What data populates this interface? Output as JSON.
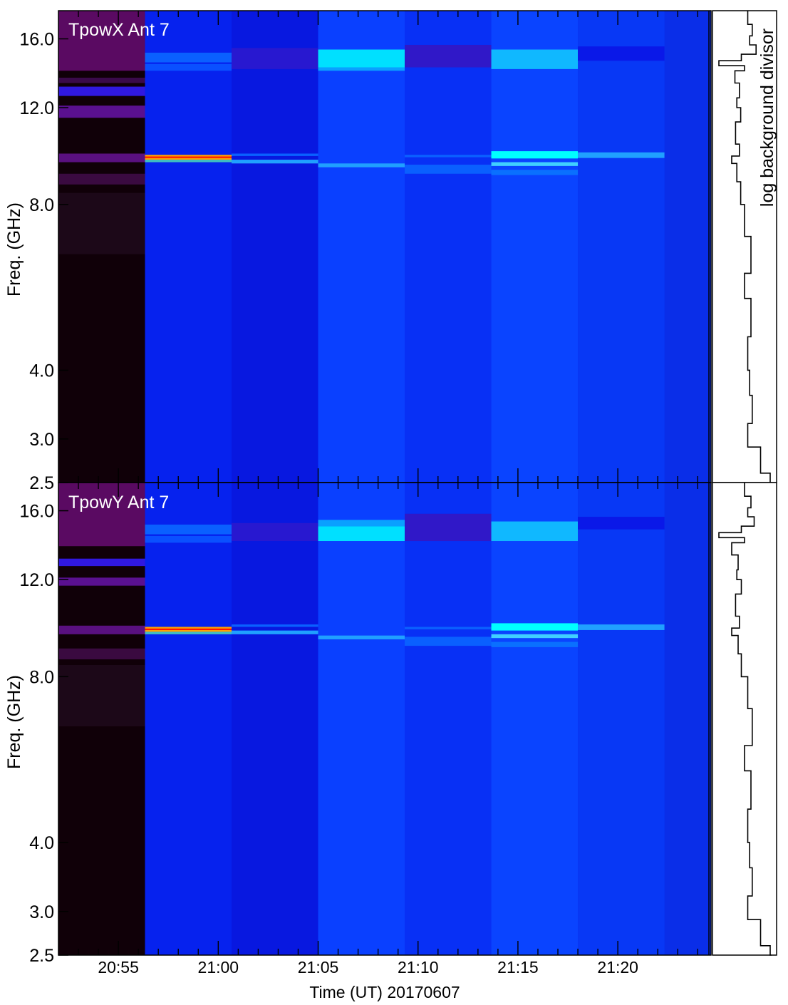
{
  "chart_data": [
    {
      "type": "heatmap",
      "title": "TpowX Ant 7",
      "ylabel": "Freq. (GHz)",
      "yscale": "log",
      "ylim": [
        2.5,
        18.0
      ],
      "ytick_values": [
        2.5,
        3.0,
        4.0,
        8.0,
        12.0,
        16.0
      ],
      "ytick_labels": [
        "2.5",
        "3.0",
        "4.0",
        "8.0",
        "12.0",
        "16.0"
      ],
      "xlim": [
        "20:52:00",
        "21:24:40"
      ],
      "time_segments": [
        {
          "start": "20:52:00",
          "end": "20:56:20",
          "base_color": "#100008"
        },
        {
          "start": "20:56:20",
          "end": "21:00:40",
          "base_color": "#0622ee"
        },
        {
          "start": "21:00:40",
          "end": "21:05:00",
          "base_color": "#0818e0"
        },
        {
          "start": "21:05:00",
          "end": "21:09:20",
          "base_color": "#0a40ff"
        },
        {
          "start": "21:09:20",
          "end": "21:13:40",
          "base_color": "#0830f5"
        },
        {
          "start": "21:13:40",
          "end": "21:18:00",
          "base_color": "#0a44ff"
        },
        {
          "start": "21:18:00",
          "end": "21:22:20",
          "base_color": "#0838f5"
        }
      ],
      "features": [
        {
          "segment": 0,
          "f_lo": 14.0,
          "f_hi": 18.0,
          "color": "#5a0a62"
        },
        {
          "segment": 0,
          "f_lo": 13.3,
          "f_hi": 13.6,
          "color": "#3a0a4a"
        },
        {
          "segment": 0,
          "f_lo": 12.6,
          "f_hi": 13.1,
          "color": "#3018e0"
        },
        {
          "segment": 0,
          "f_lo": 11.5,
          "f_hi": 12.1,
          "color": "#5a1090"
        },
        {
          "segment": 0,
          "f_lo": 9.55,
          "f_hi": 9.9,
          "color": "#5a1080"
        },
        {
          "segment": 0,
          "f_lo": 8.7,
          "f_hi": 9.1,
          "color": "#3a0a40"
        },
        {
          "segment": 0,
          "f_lo": 6.5,
          "f_hi": 8.4,
          "color": "#1c0818"
        },
        {
          "segment": 1,
          "f_lo": 9.65,
          "f_hi": 9.85,
          "color": "#ffa000"
        },
        {
          "segment": 1,
          "f_lo": 9.72,
          "f_hi": 9.78,
          "color": "#ff1000"
        },
        {
          "segment": 1,
          "f_lo": 9.55,
          "f_hi": 9.65,
          "color": "#40c0c0"
        },
        {
          "segment": 1,
          "f_lo": 14.5,
          "f_hi": 15.1,
          "color": "#0a60ff"
        },
        {
          "segment": 1,
          "f_lo": 14.0,
          "f_hi": 14.4,
          "color": "#0a50ff"
        },
        {
          "segment": 2,
          "f_lo": 14.1,
          "f_hi": 15.4,
          "color": "#2818d0"
        },
        {
          "segment": 2,
          "f_lo": 9.5,
          "f_hi": 9.65,
          "color": "#20a0ff"
        },
        {
          "segment": 2,
          "f_lo": 9.8,
          "f_hi": 9.9,
          "color": "#0a60ff"
        },
        {
          "segment": 3,
          "f_lo": 14.2,
          "f_hi": 15.3,
          "color": "#00e0ff"
        },
        {
          "segment": 3,
          "f_lo": 14.0,
          "f_hi": 14.2,
          "color": "#0aa0ff"
        },
        {
          "segment": 3,
          "f_lo": 9.35,
          "f_hi": 9.5,
          "color": "#20a0ff"
        },
        {
          "segment": 4,
          "f_lo": 14.2,
          "f_hi": 15.6,
          "color": "#3018c8"
        },
        {
          "segment": 4,
          "f_lo": 9.1,
          "f_hi": 9.45,
          "color": "#0a60ff"
        },
        {
          "segment": 4,
          "f_lo": 9.75,
          "f_hi": 9.85,
          "color": "#0a60ff"
        },
        {
          "segment": 5,
          "f_lo": 14.1,
          "f_hi": 15.3,
          "color": "#10b8ff"
        },
        {
          "segment": 5,
          "f_lo": 9.7,
          "f_hi": 10.0,
          "color": "#00ffff"
        },
        {
          "segment": 5,
          "f_lo": 9.4,
          "f_hi": 9.55,
          "color": "#40d0ff"
        },
        {
          "segment": 5,
          "f_lo": 9.05,
          "f_hi": 9.25,
          "color": "#0a70ff"
        },
        {
          "segment": 6,
          "f_lo": 14.6,
          "f_hi": 15.5,
          "color": "#0a18e8"
        },
        {
          "segment": 6,
          "f_lo": 9.72,
          "f_hi": 9.95,
          "color": "#20a0ff"
        }
      ],
      "profile_label": "log background divisor",
      "profile": [
        [
          18.0,
          0.55
        ],
        [
          17.0,
          0.62
        ],
        [
          16.2,
          0.58
        ],
        [
          15.6,
          0.68
        ],
        [
          15.0,
          0.45
        ],
        [
          14.6,
          0.1
        ],
        [
          14.3,
          0.5
        ],
        [
          14.0,
          0.35
        ],
        [
          13.3,
          0.42
        ],
        [
          12.5,
          0.38
        ],
        [
          12.0,
          0.44
        ],
        [
          11.3,
          0.36
        ],
        [
          10.3,
          0.42
        ],
        [
          9.8,
          0.3
        ],
        [
          9.5,
          0.38
        ],
        [
          8.8,
          0.44
        ],
        [
          8.0,
          0.5
        ],
        [
          7.0,
          0.6
        ],
        [
          6.0,
          0.5
        ],
        [
          5.4,
          0.6
        ],
        [
          4.6,
          0.55
        ],
        [
          4.0,
          0.58
        ],
        [
          3.6,
          0.62
        ],
        [
          3.2,
          0.55
        ],
        [
          2.9,
          0.75
        ],
        [
          2.6,
          0.9
        ],
        [
          2.5,
          0.92
        ]
      ]
    },
    {
      "type": "heatmap",
      "title": "TpowY Ant 7",
      "ylabel": "Freq. (GHz)",
      "yscale": "log",
      "ylim": [
        2.5,
        18.0
      ],
      "ytick_values": [
        2.5,
        3.0,
        4.0,
        8.0,
        12.0,
        16.0
      ],
      "ytick_labels": [
        "2.5",
        "3.0",
        "4.0",
        "8.0",
        "12.0",
        "16.0"
      ],
      "xlim": [
        "20:52:00",
        "21:24:40"
      ],
      "xticks": [
        "20:55",
        "21:00",
        "21:05",
        "21:10",
        "21:15",
        "21:20"
      ],
      "xlabel": "Time (UT) 20170607",
      "time_segments": [
        {
          "start": "20:52:00",
          "end": "20:56:20",
          "base_color": "#100008"
        },
        {
          "start": "20:56:20",
          "end": "21:00:40",
          "base_color": "#0622ee"
        },
        {
          "start": "21:00:40",
          "end": "21:05:00",
          "base_color": "#0818e0"
        },
        {
          "start": "21:05:00",
          "end": "21:09:20",
          "base_color": "#0a40ff"
        },
        {
          "start": "21:09:20",
          "end": "21:13:40",
          "base_color": "#0830f5"
        },
        {
          "start": "21:13:40",
          "end": "21:18:00",
          "base_color": "#0a44ff"
        },
        {
          "start": "21:18:00",
          "end": "21:22:20",
          "base_color": "#0838f5"
        }
      ],
      "features": [
        {
          "segment": 0,
          "f_lo": 13.8,
          "f_hi": 18.0,
          "color": "#5a0a62"
        },
        {
          "segment": 0,
          "f_lo": 12.7,
          "f_hi": 13.1,
          "color": "#3018e0"
        },
        {
          "segment": 0,
          "f_lo": 11.7,
          "f_hi": 12.1,
          "color": "#5a1090"
        },
        {
          "segment": 0,
          "f_lo": 9.55,
          "f_hi": 9.9,
          "color": "#5a1080"
        },
        {
          "segment": 0,
          "f_lo": 8.6,
          "f_hi": 9.0,
          "color": "#3a0a40"
        },
        {
          "segment": 0,
          "f_lo": 6.5,
          "f_hi": 8.4,
          "color": "#1c0818"
        },
        {
          "segment": 1,
          "f_lo": 9.65,
          "f_hi": 9.85,
          "color": "#ffa000"
        },
        {
          "segment": 1,
          "f_lo": 9.72,
          "f_hi": 9.78,
          "color": "#ff1000"
        },
        {
          "segment": 1,
          "f_lo": 9.55,
          "f_hi": 9.65,
          "color": "#40c0c0"
        },
        {
          "segment": 1,
          "f_lo": 14.5,
          "f_hi": 15.1,
          "color": "#0a60ff"
        },
        {
          "segment": 1,
          "f_lo": 14.0,
          "f_hi": 14.4,
          "color": "#0a50ff"
        },
        {
          "segment": 2,
          "f_lo": 14.1,
          "f_hi": 15.2,
          "color": "#2818d0"
        },
        {
          "segment": 2,
          "f_lo": 9.55,
          "f_hi": 9.7,
          "color": "#20a0ff"
        },
        {
          "segment": 2,
          "f_lo": 9.85,
          "f_hi": 9.95,
          "color": "#0a60ff"
        },
        {
          "segment": 3,
          "f_lo": 14.1,
          "f_hi": 15.0,
          "color": "#00e0ff"
        },
        {
          "segment": 3,
          "f_lo": 15.0,
          "f_hi": 15.4,
          "color": "#0aa0ff"
        },
        {
          "segment": 3,
          "f_lo": 9.35,
          "f_hi": 9.5,
          "color": "#20a0ff"
        },
        {
          "segment": 4,
          "f_lo": 14.1,
          "f_hi": 15.8,
          "color": "#3018c8"
        },
        {
          "segment": 4,
          "f_lo": 9.1,
          "f_hi": 9.45,
          "color": "#0a60ff"
        },
        {
          "segment": 4,
          "f_lo": 9.75,
          "f_hi": 9.85,
          "color": "#0a60ff"
        },
        {
          "segment": 5,
          "f_lo": 14.1,
          "f_hi": 15.3,
          "color": "#10b8ff"
        },
        {
          "segment": 5,
          "f_lo": 9.7,
          "f_hi": 10.0,
          "color": "#00ffff"
        },
        {
          "segment": 5,
          "f_lo": 9.4,
          "f_hi": 9.55,
          "color": "#40d0ff"
        },
        {
          "segment": 5,
          "f_lo": 9.05,
          "f_hi": 9.25,
          "color": "#0a70ff"
        },
        {
          "segment": 6,
          "f_lo": 14.8,
          "f_hi": 15.6,
          "color": "#0a18e8"
        },
        {
          "segment": 6,
          "f_lo": 9.72,
          "f_hi": 9.95,
          "color": "#20a0ff"
        }
      ],
      "profile": [
        [
          18.0,
          0.5
        ],
        [
          17.0,
          0.6
        ],
        [
          16.2,
          0.55
        ],
        [
          15.6,
          0.65
        ],
        [
          15.0,
          0.45
        ],
        [
          14.6,
          0.1
        ],
        [
          14.3,
          0.5
        ],
        [
          14.0,
          0.3
        ],
        [
          13.3,
          0.4
        ],
        [
          12.5,
          0.38
        ],
        [
          12.0,
          0.45
        ],
        [
          11.3,
          0.36
        ],
        [
          10.3,
          0.42
        ],
        [
          9.8,
          0.3
        ],
        [
          9.5,
          0.4
        ],
        [
          8.8,
          0.45
        ],
        [
          8.0,
          0.55
        ],
        [
          7.0,
          0.62
        ],
        [
          6.0,
          0.5
        ],
        [
          5.4,
          0.6
        ],
        [
          4.6,
          0.55
        ],
        [
          4.0,
          0.58
        ],
        [
          3.6,
          0.62
        ],
        [
          3.2,
          0.55
        ],
        [
          2.9,
          0.75
        ],
        [
          2.6,
          0.9
        ],
        [
          2.5,
          0.92
        ]
      ]
    }
  ]
}
